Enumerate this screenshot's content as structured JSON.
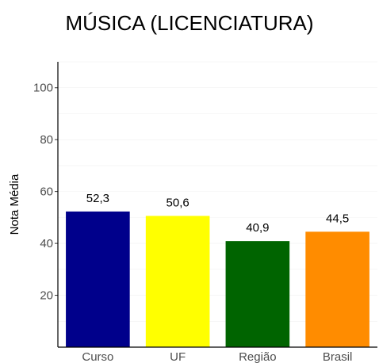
{
  "chart_data": {
    "type": "bar",
    "title": "MÚSICA (LICENCIATURA)",
    "xlabel": "",
    "ylabel": "Nota Média",
    "categories": [
      "Curso",
      "UF",
      "Região",
      "Brasil"
    ],
    "values": [
      52.3,
      50.6,
      40.9,
      44.5
    ],
    "value_labels": [
      "52,3",
      "50,6",
      "40,9",
      "44,5"
    ],
    "colors": [
      "#00008b",
      "#ffff00",
      "#006400",
      "#ff8c00"
    ],
    "ylim": [
      0,
      110
    ],
    "yticks": [
      20,
      40,
      60,
      80,
      100
    ],
    "ytick_labels": [
      "20",
      "40",
      "60",
      "80",
      "100"
    ],
    "grid": true,
    "legend": "none"
  }
}
